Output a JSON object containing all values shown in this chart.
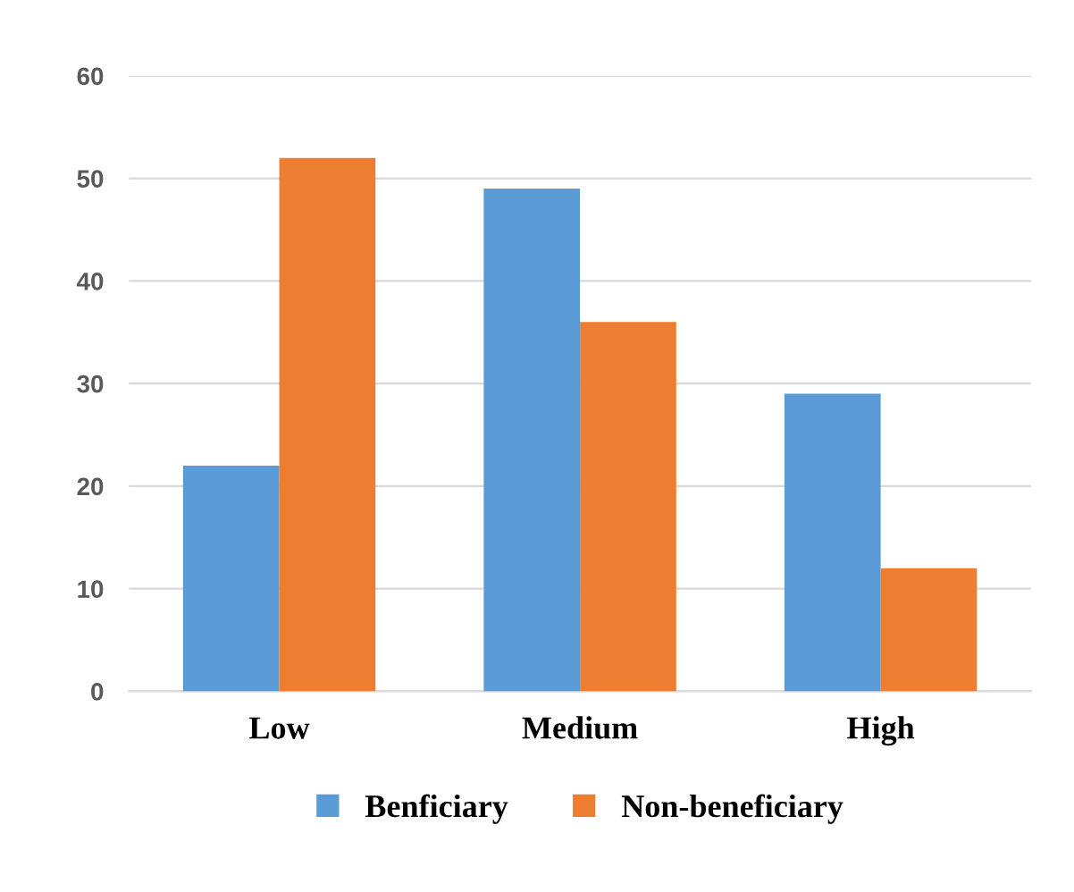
{
  "chart_data": {
    "type": "bar",
    "categories": [
      "Low",
      "Medium",
      "High"
    ],
    "series": [
      {
        "name": "Benficiary",
        "color": "#5b9bd5",
        "values": [
          22,
          49,
          29
        ]
      },
      {
        "name": "Non-beneficiary",
        "color": "#ed7d31",
        "values": [
          52,
          36,
          12
        ]
      }
    ],
    "ylim": [
      0,
      60
    ],
    "yticks": [
      0,
      10,
      20,
      30,
      40,
      50,
      60
    ],
    "grid": "y",
    "legend": "bottom"
  }
}
